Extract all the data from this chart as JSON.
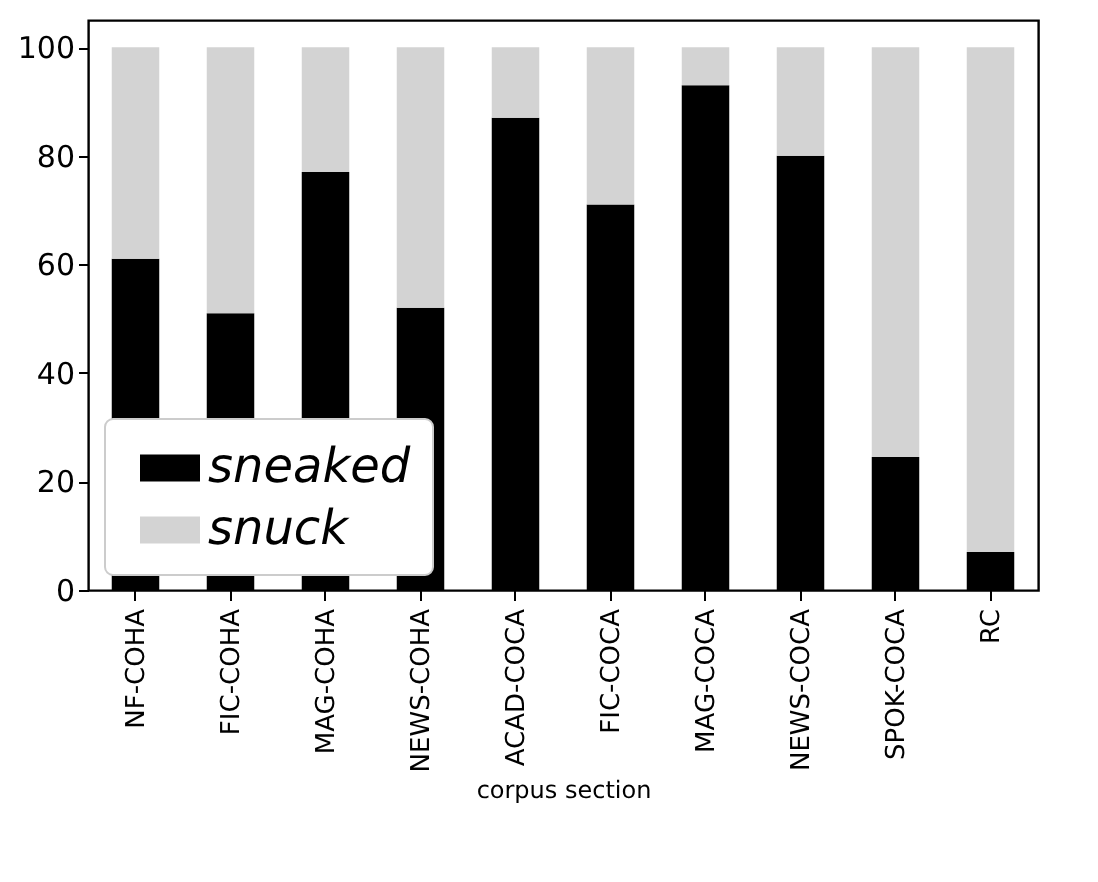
{
  "chart_data": {
    "type": "bar",
    "stacked": true,
    "xlabel": "corpus section",
    "categories": [
      "NF-COHA",
      "FIC-COHA",
      "MAG-COHA",
      "NEWS-COHA",
      "ACAD-COCA",
      "FIC-COCA",
      "MAG-COCA",
      "NEWS-COCA",
      "SPOK-COCA",
      "RC"
    ],
    "series": [
      {
        "name": "sneaked",
        "color": "#000000",
        "values": [
          61,
          51,
          77,
          52,
          87,
          71,
          93,
          80,
          24.5,
          7
        ]
      },
      {
        "name": "snuck",
        "color": "#d3d3d3",
        "values": [
          39,
          49,
          23,
          48,
          13,
          29,
          7,
          20,
          75.5,
          93
        ]
      }
    ],
    "ylim": [
      0,
      105
    ],
    "yticks": [
      0,
      20,
      40,
      60,
      80,
      100
    ],
    "grid": false,
    "legend": "bottom left"
  }
}
